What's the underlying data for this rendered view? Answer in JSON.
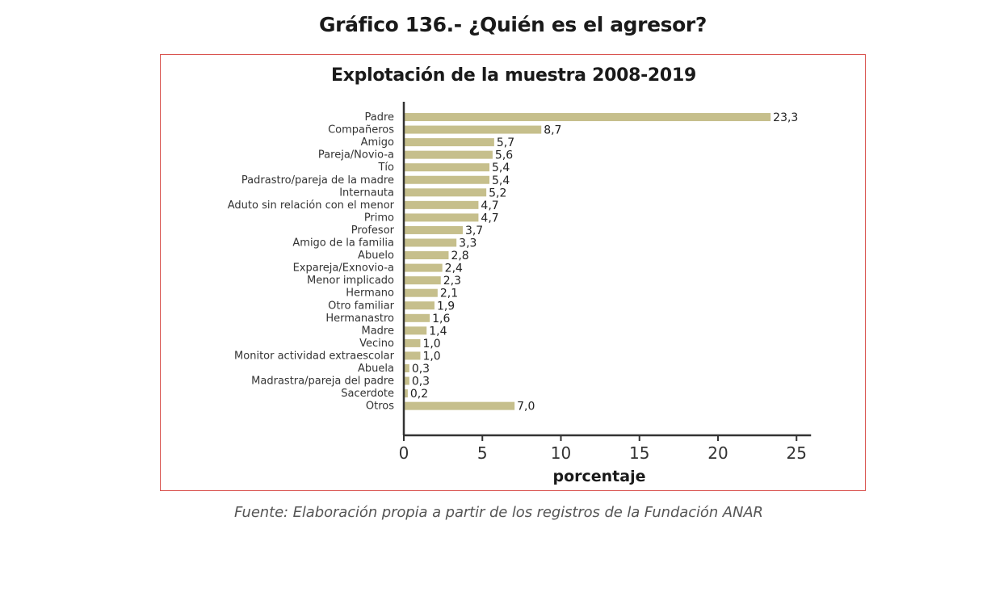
{
  "figure_title": "Gráfico 136.- ¿Quién es el agresor?",
  "source_note": "Fuente: Elaboración propia a partir de los registros de la Fundación ANAR",
  "colors": {
    "bar": "#c6bf8c",
    "frame": "#d9534f",
    "axis": "#333333"
  },
  "chart_data": {
    "type": "bar",
    "orientation": "horizontal",
    "title": "Explotación de la muestra 2008-2019",
    "xlabel": "porcentaje",
    "ylabel": "",
    "xlim": [
      0,
      25
    ],
    "xticks": [
      0,
      5,
      10,
      15,
      20,
      25
    ],
    "grid": false,
    "categories": [
      "Padre",
      "Compañeros",
      "Amigo",
      "Pareja/Novio-a",
      "Tío",
      "Padrastro/pareja de la madre",
      "Internauta",
      "Aduto sin relación con el menor",
      "Primo",
      "Profesor",
      "Amigo de la familia",
      "Abuelo",
      "Expareja/Exnovio-a",
      "Menor implicado",
      "Hermano",
      "Otro familiar",
      "Hermanastro",
      "Madre",
      "Vecino",
      "Monitor actividad extraescolar",
      "Abuela",
      "Madrastra/pareja del padre",
      "Sacerdote",
      "Otros"
    ],
    "values": [
      23.3,
      8.7,
      5.7,
      5.6,
      5.4,
      5.4,
      5.2,
      4.7,
      4.7,
      3.7,
      3.3,
      2.8,
      2.4,
      2.3,
      2.1,
      1.9,
      1.6,
      1.4,
      1.0,
      1.0,
      0.3,
      0.3,
      0.2,
      7.0
    ],
    "value_labels": [
      "23,3",
      "8,7",
      "5,7",
      "5,6",
      "5,4",
      "5,4",
      "5,2",
      "4,7",
      "4,7",
      "3,7",
      "3,3",
      "2,8",
      "2,4",
      "2,3",
      "2,1",
      "1,9",
      "1,6",
      "1,4",
      "1,0",
      "1,0",
      "0,3",
      "0,3",
      "0,2",
      "7,0"
    ]
  }
}
